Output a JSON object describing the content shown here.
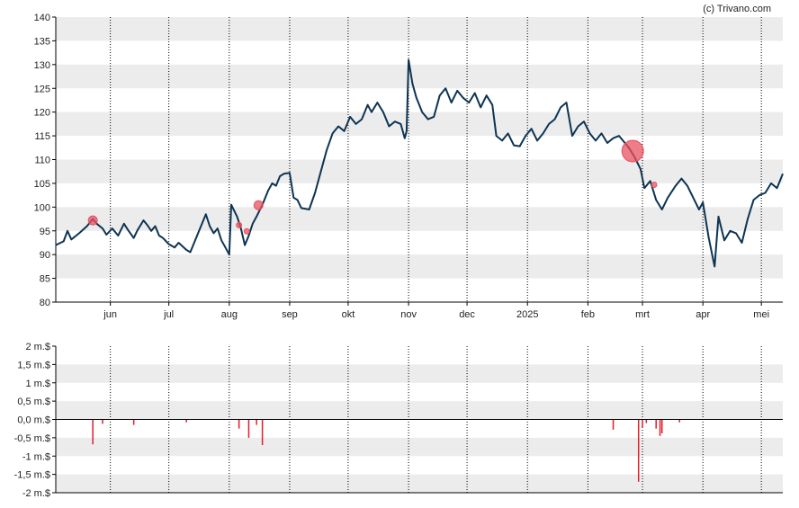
{
  "copyright": "(c) Trivano.com",
  "colors": {
    "band": "#ececec",
    "line": "#0d3453",
    "marker": "#e8515f",
    "volume": "#e01e2b",
    "axis": "#000000",
    "grid": "#000000"
  },
  "chart_data": [
    {
      "type": "line",
      "name": "price",
      "ylim": [
        80,
        140
      ],
      "y_ticks": [
        80,
        85,
        90,
        95,
        100,
        105,
        110,
        115,
        120,
        125,
        130,
        135,
        140
      ],
      "grid": "vertical dotted at month starts; horizontal alternating bands",
      "x_range": [
        "2024-05-04",
        "2025-05-12"
      ],
      "month_ticks": [
        {
          "label": "jun",
          "date": "2024-06-01"
        },
        {
          "label": "jul",
          "date": "2024-07-01"
        },
        {
          "label": "aug",
          "date": "2024-08-01"
        },
        {
          "label": "sep",
          "date": "2024-09-01"
        },
        {
          "label": "okt",
          "date": "2024-10-01"
        },
        {
          "label": "nov",
          "date": "2024-11-01"
        },
        {
          "label": "dec",
          "date": "2024-12-01"
        },
        {
          "label": "2025",
          "date": "2025-01-01"
        },
        {
          "label": "feb",
          "date": "2025-02-01"
        },
        {
          "label": "mrt",
          "date": "2025-03-01"
        },
        {
          "label": "apr",
          "date": "2025-04-01"
        },
        {
          "label": "mei",
          "date": "2025-05-01"
        }
      ],
      "points": [
        [
          "2024-05-04",
          92.0
        ],
        [
          "2024-05-08",
          92.8
        ],
        [
          "2024-05-10",
          95.0
        ],
        [
          "2024-05-12",
          93.2
        ],
        [
          "2024-05-16",
          94.5
        ],
        [
          "2024-05-20",
          96.0
        ],
        [
          "2024-05-23",
          97.5
        ],
        [
          "2024-05-25",
          96.5
        ],
        [
          "2024-05-28",
          95.5
        ],
        [
          "2024-05-30",
          94.2
        ],
        [
          "2024-06-02",
          95.5
        ],
        [
          "2024-06-05",
          94.0
        ],
        [
          "2024-06-08",
          96.5
        ],
        [
          "2024-06-10",
          95.2
        ],
        [
          "2024-06-13",
          93.5
        ],
        [
          "2024-06-15",
          95.2
        ],
        [
          "2024-06-18",
          97.2
        ],
        [
          "2024-06-20",
          96.2
        ],
        [
          "2024-06-22",
          95.0
        ],
        [
          "2024-06-24",
          96.0
        ],
        [
          "2024-06-26",
          94.0
        ],
        [
          "2024-06-28",
          93.5
        ],
        [
          "2024-07-01",
          92.2
        ],
        [
          "2024-07-04",
          91.5
        ],
        [
          "2024-07-06",
          92.5
        ],
        [
          "2024-07-10",
          91.0
        ],
        [
          "2024-07-12",
          90.5
        ],
        [
          "2024-07-14",
          92.5
        ],
        [
          "2024-07-17",
          95.5
        ],
        [
          "2024-07-20",
          98.5
        ],
        [
          "2024-07-22",
          96.0
        ],
        [
          "2024-07-24",
          94.5
        ],
        [
          "2024-07-26",
          95.5
        ],
        [
          "2024-07-28",
          93.0
        ],
        [
          "2024-07-30",
          91.5
        ],
        [
          "2024-08-01",
          90.0
        ],
        [
          "2024-08-02",
          100.5
        ],
        [
          "2024-08-05",
          98.0
        ],
        [
          "2024-08-07",
          95.5
        ],
        [
          "2024-08-09",
          92.0
        ],
        [
          "2024-08-11",
          94.0
        ],
        [
          "2024-08-13",
          96.5
        ],
        [
          "2024-08-15",
          98.0
        ],
        [
          "2024-08-18",
          100.5
        ],
        [
          "2024-08-21",
          103.5
        ],
        [
          "2024-08-23",
          105.0
        ],
        [
          "2024-08-25",
          104.5
        ],
        [
          "2024-08-27",
          106.5
        ],
        [
          "2024-08-29",
          107.0
        ],
        [
          "2024-09-01",
          107.2
        ],
        [
          "2024-09-03",
          102.0
        ],
        [
          "2024-09-05",
          101.5
        ],
        [
          "2024-09-07",
          99.8
        ],
        [
          "2024-09-11",
          99.5
        ],
        [
          "2024-09-14",
          103.0
        ],
        [
          "2024-09-17",
          107.5
        ],
        [
          "2024-09-20",
          112.0
        ],
        [
          "2024-09-23",
          115.5
        ],
        [
          "2024-09-26",
          117.0
        ],
        [
          "2024-09-29",
          116.0
        ],
        [
          "2024-10-02",
          119.0
        ],
        [
          "2024-10-05",
          117.5
        ],
        [
          "2024-10-08",
          118.5
        ],
        [
          "2024-10-11",
          121.5
        ],
        [
          "2024-10-13",
          120.0
        ],
        [
          "2024-10-16",
          122.0
        ],
        [
          "2024-10-19",
          120.0
        ],
        [
          "2024-10-22",
          117.0
        ],
        [
          "2024-10-25",
          118.0
        ],
        [
          "2024-10-28",
          117.5
        ],
        [
          "2024-10-30",
          114.5
        ],
        [
          "2024-10-31",
          116.0
        ],
        [
          "2024-11-01",
          131.0
        ],
        [
          "2024-11-03",
          126.0
        ],
        [
          "2024-11-05",
          123.0
        ],
        [
          "2024-11-08",
          120.0
        ],
        [
          "2024-11-11",
          118.5
        ],
        [
          "2024-11-14",
          119.0
        ],
        [
          "2024-11-17",
          123.5
        ],
        [
          "2024-11-20",
          125.0
        ],
        [
          "2024-11-23",
          122.0
        ],
        [
          "2024-11-26",
          124.5
        ],
        [
          "2024-11-29",
          123.0
        ],
        [
          "2024-12-02",
          122.0
        ],
        [
          "2024-12-05",
          124.0
        ],
        [
          "2024-12-08",
          121.0
        ],
        [
          "2024-12-11",
          123.5
        ],
        [
          "2024-12-14",
          121.5
        ],
        [
          "2024-12-16",
          115.0
        ],
        [
          "2024-12-19",
          114.0
        ],
        [
          "2024-12-22",
          115.5
        ],
        [
          "2024-12-25",
          113.0
        ],
        [
          "2024-12-28",
          112.8
        ],
        [
          "2024-12-31",
          115.0
        ],
        [
          "2025-01-03",
          116.5
        ],
        [
          "2025-01-06",
          114.0
        ],
        [
          "2025-01-09",
          115.5
        ],
        [
          "2025-01-12",
          117.5
        ],
        [
          "2025-01-15",
          118.5
        ],
        [
          "2025-01-18",
          121.0
        ],
        [
          "2025-01-21",
          122.0
        ],
        [
          "2025-01-24",
          115.0
        ],
        [
          "2025-01-27",
          117.0
        ],
        [
          "2025-01-30",
          118.0
        ],
        [
          "2025-02-02",
          115.5
        ],
        [
          "2025-02-05",
          114.0
        ],
        [
          "2025-02-08",
          115.5
        ],
        [
          "2025-02-11",
          113.5
        ],
        [
          "2025-02-14",
          114.5
        ],
        [
          "2025-02-17",
          115.0
        ],
        [
          "2025-02-20",
          113.5
        ],
        [
          "2025-02-22",
          112.5
        ],
        [
          "2025-02-25",
          110.5
        ],
        [
          "2025-02-28",
          108.0
        ],
        [
          "2025-03-02",
          104.0
        ],
        [
          "2025-03-05",
          105.5
        ],
        [
          "2025-03-08",
          101.5
        ],
        [
          "2025-03-11",
          99.5
        ],
        [
          "2025-03-14",
          102.0
        ],
        [
          "2025-03-18",
          104.5
        ],
        [
          "2025-03-21",
          106.0
        ],
        [
          "2025-03-24",
          104.5
        ],
        [
          "2025-03-27",
          102.0
        ],
        [
          "2025-03-30",
          99.5
        ],
        [
          "2025-04-01",
          101.0
        ],
        [
          "2025-04-04",
          93.5
        ],
        [
          "2025-04-07",
          87.5
        ],
        [
          "2025-04-09",
          98.0
        ],
        [
          "2025-04-12",
          93.0
        ],
        [
          "2025-04-15",
          95.0
        ],
        [
          "2025-04-18",
          94.5
        ],
        [
          "2025-04-21",
          92.5
        ],
        [
          "2025-04-24",
          97.5
        ],
        [
          "2025-04-27",
          101.5
        ],
        [
          "2025-04-30",
          102.5
        ],
        [
          "2025-05-03",
          103.0
        ],
        [
          "2025-05-06",
          105.0
        ],
        [
          "2025-05-09",
          104.0
        ],
        [
          "2025-05-12",
          107.0
        ]
      ],
      "markers": [
        {
          "date": "2024-05-23",
          "y": 97.2,
          "size": "small"
        },
        {
          "date": "2024-08-06",
          "y": 96.2,
          "size": "tiny"
        },
        {
          "date": "2024-08-10",
          "y": 94.9,
          "size": "tiny"
        },
        {
          "date": "2024-08-16",
          "y": 100.4,
          "size": "small"
        },
        {
          "date": "2025-02-24",
          "y": 111.8,
          "size": "large"
        },
        {
          "date": "2025-03-07",
          "y": 104.7,
          "size": "tiny"
        }
      ]
    },
    {
      "type": "bar",
      "name": "volume",
      "y_ticks": [
        {
          "value": 2,
          "label": "2 m.$"
        },
        {
          "value": 1.5,
          "label": "1,5 m.$"
        },
        {
          "value": 1,
          "label": "1 m.$"
        },
        {
          "value": 0.5,
          "label": "0,5 m.$"
        },
        {
          "value": 0,
          "label": "0,0 m.$"
        },
        {
          "value": -0.5,
          "label": "-0,5 m.$"
        },
        {
          "value": -1,
          "label": "-1 m.$"
        },
        {
          "value": -1.5,
          "label": "-1,5 m.$"
        },
        {
          "value": -2,
          "label": "-2 m.$"
        }
      ],
      "ylim": [
        -2,
        2
      ],
      "bars": [
        {
          "date": "2024-05-23",
          "value": -0.68
        },
        {
          "date": "2024-05-28",
          "value": -0.12
        },
        {
          "date": "2024-06-13",
          "value": -0.15
        },
        {
          "date": "2024-07-10",
          "value": -0.08
        },
        {
          "date": "2024-08-06",
          "value": -0.25
        },
        {
          "date": "2024-08-11",
          "value": -0.5
        },
        {
          "date": "2024-08-15",
          "value": -0.15
        },
        {
          "date": "2024-08-18",
          "value": -0.7
        },
        {
          "date": "2025-02-14",
          "value": -0.28
        },
        {
          "date": "2025-02-27",
          "value": -1.7
        },
        {
          "date": "2025-03-01",
          "value": -0.22
        },
        {
          "date": "2025-03-03",
          "value": -0.1
        },
        {
          "date": "2025-03-08",
          "value": -0.25
        },
        {
          "date": "2025-03-10",
          "value": -0.45
        },
        {
          "date": "2025-03-11",
          "value": -0.38
        },
        {
          "date": "2025-03-20",
          "value": -0.08
        }
      ]
    }
  ]
}
